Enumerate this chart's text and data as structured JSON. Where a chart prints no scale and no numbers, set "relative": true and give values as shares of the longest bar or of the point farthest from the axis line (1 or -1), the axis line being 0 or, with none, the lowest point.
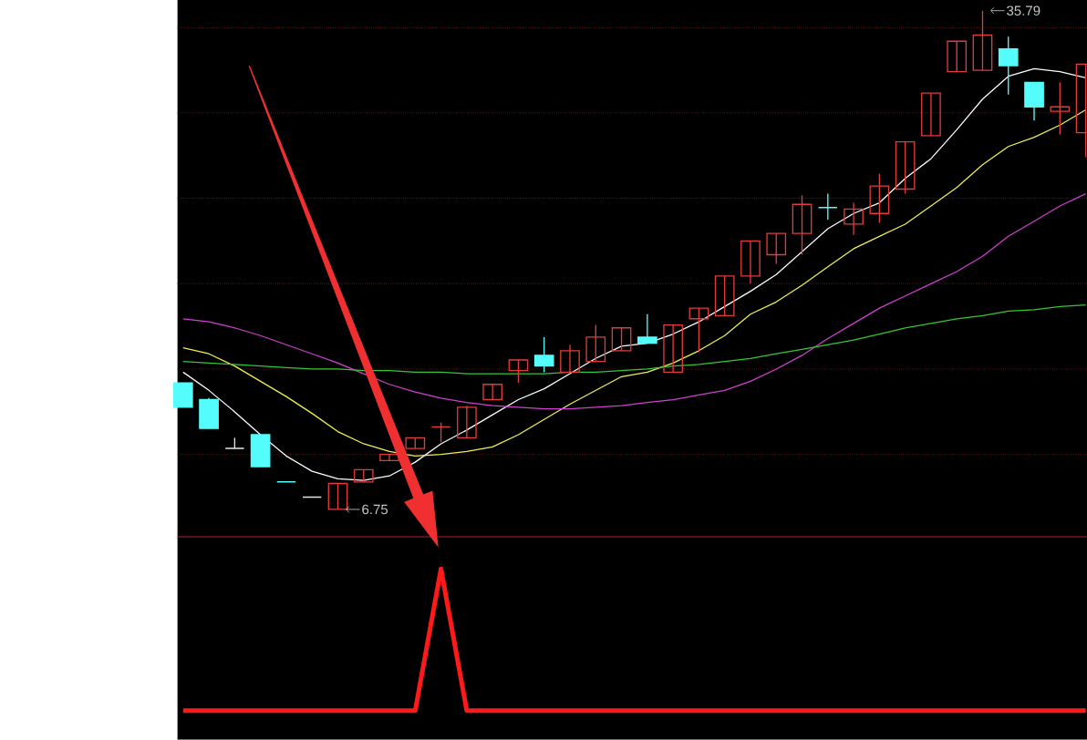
{
  "chart_data": [
    {
      "type": "candlestick",
      "categories": [
        null,
        null,
        null,
        null,
        null,
        null,
        null,
        null,
        null,
        null,
        null,
        null,
        null,
        null,
        null,
        null,
        null,
        null,
        null,
        null,
        null,
        null,
        null,
        null,
        null,
        null,
        null,
        null,
        null,
        null,
        null,
        null,
        null,
        null,
        null,
        null
      ],
      "ohlc": [
        [
          14.12,
          14.12,
          12.7,
          12.7
        ],
        [
          13.14,
          13.23,
          11.46,
          11.46
        ],
        [
          10.3,
          10.92,
          10.3,
          10.3
        ],
        [
          11.1,
          11.1,
          9.24,
          9.24
        ],
        [
          8.35,
          8.35,
          8.35,
          8.35
        ],
        [
          7.46,
          7.46,
          7.46,
          7.46
        ],
        [
          6.75,
          8.26,
          6.75,
          8.26
        ],
        [
          8.35,
          9.06,
          8.35,
          9.06
        ],
        [
          9.59,
          9.95,
          9.59,
          9.95
        ],
        [
          10.3,
          10.92,
          10.3,
          10.92
        ],
        [
          11.55,
          11.81,
          10.66,
          11.55
        ],
        [
          10.92,
          12.79,
          10.92,
          12.7
        ],
        [
          13.14,
          14.03,
          13.14,
          14.03
        ],
        [
          14.83,
          15.45,
          14.12,
          15.45
        ],
        [
          15.72,
          16.78,
          14.74,
          15.1
        ],
        [
          14.74,
          16.34,
          14.74,
          15.99
        ],
        [
          15.36,
          17.49,
          15.36,
          16.78
        ],
        [
          15.99,
          17.32,
          15.99,
          17.32
        ],
        [
          16.78,
          18.12,
          16.43,
          16.43
        ],
        [
          14.74,
          17.49,
          14.74,
          17.49
        ],
        [
          17.85,
          18.47,
          15.9,
          18.47
        ],
        [
          18.03,
          20.34,
          18.03,
          20.34
        ],
        [
          20.34,
          22.38,
          19.89,
          22.38
        ],
        [
          21.58,
          22.82,
          21.05,
          22.82
        ],
        [
          22.82,
          25.04,
          21.58,
          24.51
        ],
        [
          24.33,
          25.13,
          23.62,
          24.33
        ],
        [
          23.36,
          24.6,
          22.73,
          24.24
        ],
        [
          23.98,
          26.29,
          23.44,
          25.58
        ],
        [
          25.4,
          28.15,
          25.13,
          28.15
        ],
        [
          28.51,
          30.99,
          28.51,
          30.99
        ],
        [
          32.24,
          34.01,
          32.24,
          34.01
        ],
        [
          32.32,
          35.79,
          32.32,
          34.37
        ],
        [
          33.57,
          34.28,
          30.9,
          32.59
        ],
        [
          31.61,
          31.61,
          29.39,
          30.19
        ],
        [
          29.93,
          31.61,
          28.59,
          30.19
        ],
        [
          28.68,
          32.68,
          27.26,
          32.68
        ]
      ],
      "colors": [
        "#54fcfc",
        "#54fcfc",
        "#e6e6e6",
        "#54fcfc",
        "#54fcfc",
        "#e6e6e6",
        "#e03c3c",
        "#e03c3c",
        "#e03c3c",
        "#e03c3c",
        "#e03c3c",
        "#e03c3c",
        "#e03c3c",
        "#e03c3c",
        "#54fcfc",
        "#e03c3c",
        "#e03c3c",
        "#e03c3c",
        "#54fcfc",
        "#e03c3c",
        "#e03c3c",
        "#e03c3c",
        "#e03c3c",
        "#e03c3c",
        "#e03c3c",
        "#54fcfc",
        "#e03c3c",
        "#e03c3c",
        "#e03c3c",
        "#e03c3c",
        "#e03c3c",
        "#e03c3c",
        "#54fcfc",
        "#54fcfc",
        "#e03c3c",
        "#e03c3c"
      ],
      "series": [
        {
          "type": "line",
          "color": "#ffffff",
          "values": [
            14.74,
            13.68,
            12.43,
            11.1,
            9.86,
            8.97,
            8.53,
            8.44,
            8.7,
            9.5,
            10.57,
            11.37,
            12.26,
            13.14,
            13.77,
            14.65,
            15.54,
            16.25,
            16.43,
            16.96,
            17.67,
            18.56,
            19.45,
            20.43,
            21.76,
            23.09,
            23.98,
            24.6,
            26.02,
            27.17,
            28.86,
            30.64,
            31.97,
            32.41,
            32.24,
            31.88
          ]
        },
        {
          "type": "line",
          "color": "#f0f050",
          "values": [
            16.16,
            15.81,
            15.1,
            14.21,
            13.32,
            12.34,
            11.28,
            10.57,
            10.12,
            9.86,
            9.95,
            10.12,
            10.39,
            11.1,
            11.99,
            12.88,
            13.68,
            14.48,
            14.74,
            15.27,
            15.99,
            16.87,
            18.12,
            18.83,
            19.8,
            20.87,
            21.93,
            22.65,
            23.36,
            24.42,
            25.49,
            26.82,
            27.88,
            28.42,
            29.13,
            30.02
          ]
        },
        {
          "type": "line",
          "color": "#d040d0",
          "values": [
            17.85,
            17.67,
            17.32,
            16.87,
            16.34,
            15.81,
            15.27,
            14.65,
            14.03,
            13.59,
            13.23,
            12.97,
            12.79,
            12.7,
            12.61,
            12.61,
            12.7,
            12.79,
            12.97,
            13.14,
            13.41,
            13.68,
            14.21,
            14.92,
            15.72,
            16.7,
            17.58,
            18.47,
            19.18,
            19.89,
            20.6,
            21.49,
            22.65,
            23.53,
            24.42,
            25.13
          ]
        },
        {
          "type": "line",
          "color": "#33c833",
          "values": [
            15.36,
            15.27,
            15.19,
            15.1,
            15.01,
            14.92,
            14.92,
            14.83,
            14.83,
            14.74,
            14.74,
            14.65,
            14.65,
            14.65,
            14.65,
            14.74,
            14.74,
            14.83,
            14.92,
            15.1,
            15.19,
            15.36,
            15.54,
            15.81,
            16.07,
            16.34,
            16.61,
            16.96,
            17.32,
            17.58,
            17.85,
            18.03,
            18.29,
            18.38,
            18.56,
            18.65
          ]
        }
      ],
      "grid": "y",
      "yticks": [
        {
          "value": 9.95,
          "label": null
        },
        {
          "value": 14.92,
          "label": null
        },
        {
          "value": 19.89,
          "label": null
        },
        {
          "value": 24.87,
          "label": null
        },
        {
          "value": 29.84,
          "label": null
        },
        {
          "value": 34.81,
          "label": null
        }
      ],
      "annotations": [
        "6.75",
        "35.79"
      ]
    },
    {
      "type": "line",
      "relative": true,
      "categories": [
        null,
        null,
        null,
        null,
        null,
        null,
        null,
        null,
        null,
        null,
        null,
        null,
        null,
        null,
        null,
        null,
        null,
        null,
        null,
        null,
        null,
        null,
        null,
        null,
        null,
        null,
        null,
        null,
        null,
        null,
        null,
        null,
        null,
        null,
        null,
        null
      ],
      "color": "#ff1a1a",
      "values": [
        0,
        0,
        0,
        0,
        0,
        0,
        0,
        0,
        0,
        0,
        1,
        0,
        0,
        0,
        0,
        0,
        0,
        0,
        0,
        0,
        0,
        0,
        0,
        0,
        0,
        0,
        0,
        0,
        0,
        0,
        0,
        0,
        0,
        0,
        0,
        0
      ]
    }
  ]
}
